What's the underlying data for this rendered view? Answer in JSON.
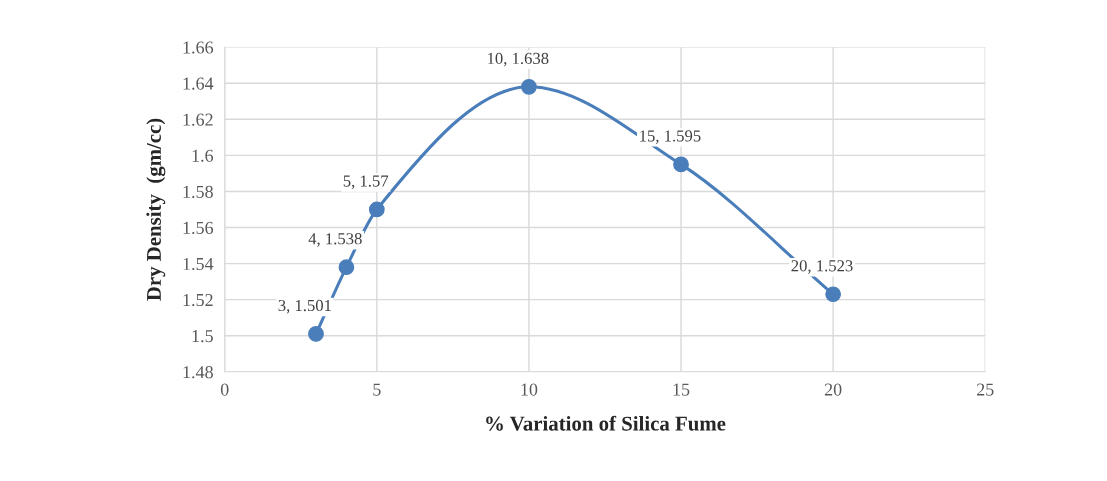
{
  "chart_data": {
    "type": "line",
    "xlabel": "% Variation of Silica Fume",
    "ylabel": "Dry Density  (gm/cc)",
    "x": [
      3,
      4,
      5,
      10,
      15,
      20
    ],
    "series": [
      {
        "color": "#4a7ebb",
        "values": [
          1.501,
          1.538,
          1.57,
          1.638,
          1.595,
          1.523
        ],
        "value_labels": [
          "3, 1.501",
          "4, 1.538",
          "5, 1.57",
          "10, 1.638",
          "15, 1.595",
          "20, 1.523"
        ]
      }
    ],
    "xlim": [
      0,
      25
    ],
    "xticks": [
      0,
      5,
      10,
      15,
      20,
      25
    ],
    "ylim": [
      1.48,
      1.66
    ],
    "yticks": [
      {
        "value": 1.48,
        "label": "1.48"
      },
      {
        "value": 1.5,
        "label": "1.5"
      },
      {
        "value": 1.52,
        "label": "1.52"
      },
      {
        "value": 1.54,
        "label": "1.54"
      },
      {
        "value": 1.56,
        "label": "1.56"
      },
      {
        "value": 1.58,
        "label": "1.58"
      },
      {
        "value": 1.6,
        "label": "1.6"
      },
      {
        "value": 1.62,
        "label": "1.62"
      },
      {
        "value": 1.64,
        "label": "1.64"
      },
      {
        "value": 1.66,
        "label": "1.66"
      }
    ],
    "grid": true,
    "marker": "circle",
    "line_style": "solid"
  }
}
